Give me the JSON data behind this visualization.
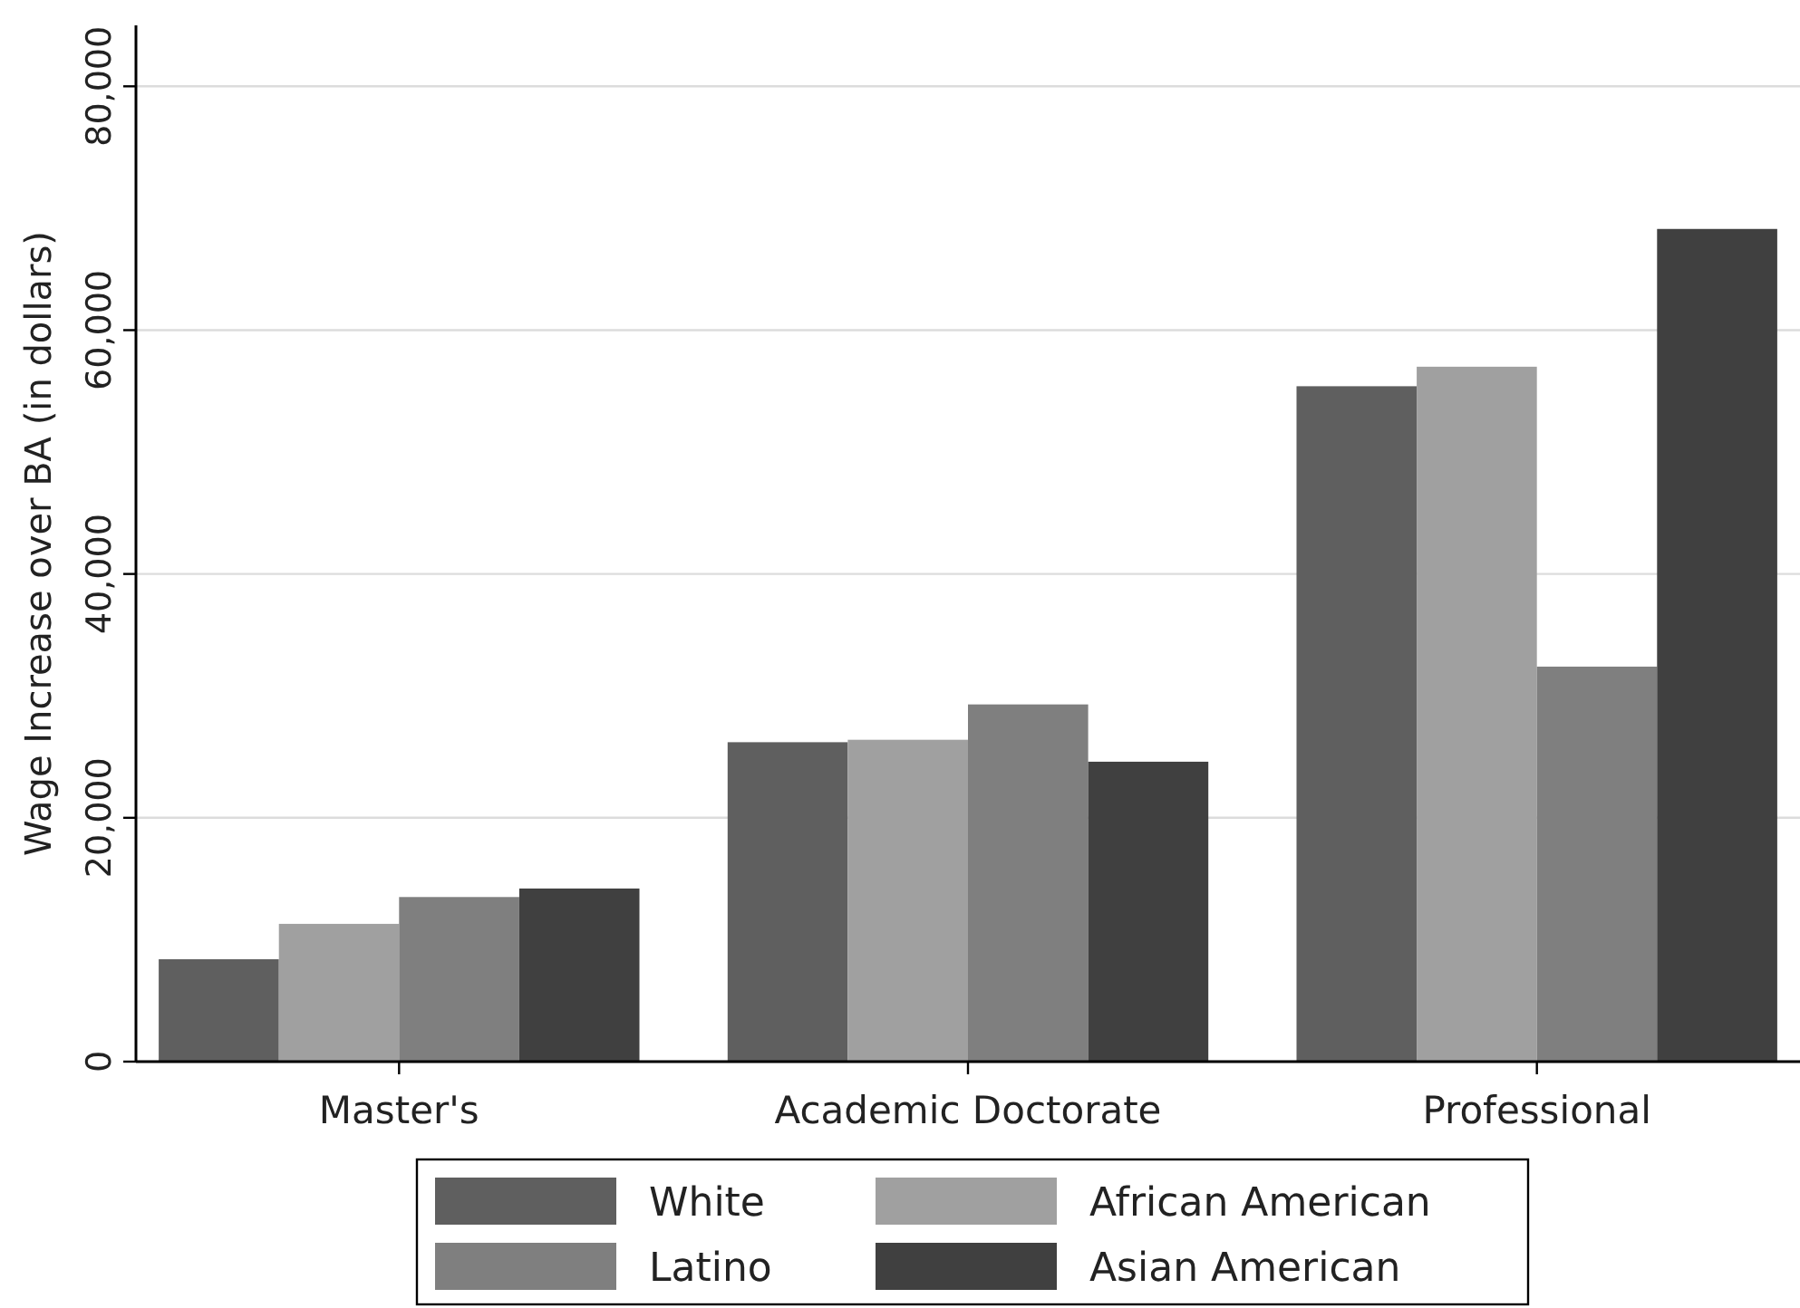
{
  "chart_data": {
    "type": "bar",
    "ylabel": "Wage Increase over BA (in dollars)",
    "categories": [
      "Master's",
      "Academic Doctorate",
      "Professional"
    ],
    "series": [
      {
        "name": "White",
        "color": "#5f5f5f",
        "values": [
          8400,
          26200,
          55400
        ]
      },
      {
        "name": "African American",
        "color": "#a0a0a0",
        "values": [
          11300,
          26400,
          57000
        ]
      },
      {
        "name": "Latino",
        "color": "#7f7f7f",
        "values": [
          13500,
          29300,
          32400
        ]
      },
      {
        "name": "Asian American",
        "color": "#404040",
        "values": [
          14200,
          24600,
          68300
        ]
      }
    ],
    "ylim": [
      0,
      85000
    ],
    "yticks": [
      0,
      {
        "value": 20000,
        "label": "20,000"
      },
      {
        "value": 40000,
        "label": "40,000"
      },
      {
        "value": 60000,
        "label": "60,000"
      },
      {
        "value": 80000,
        "label": "80,000"
      }
    ],
    "grid": "y",
    "legend": "bottom"
  }
}
